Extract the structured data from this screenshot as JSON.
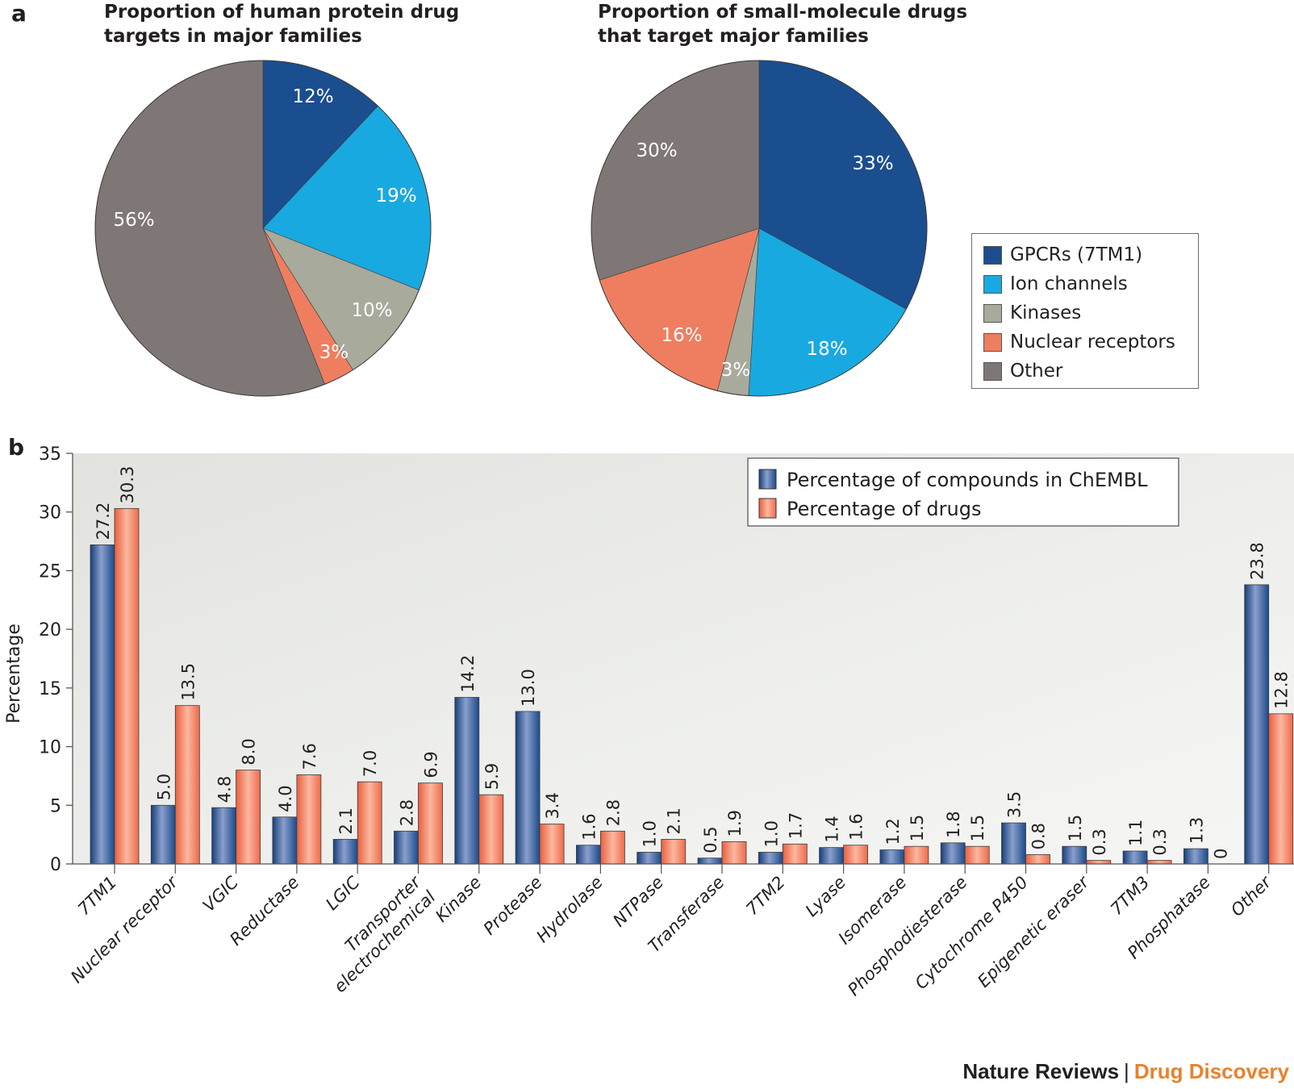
{
  "panels": {
    "a": "a",
    "b": "b"
  },
  "footer": {
    "journal": "Nature Reviews",
    "separator": "|",
    "section": "Drug Discovery"
  },
  "colors": {
    "gpcr": "#1b4e8f",
    "ion": "#19a9e1",
    "kinase": "#a8aa9c",
    "nuclear": "#ef7e60",
    "other": "#7f7776",
    "chembl": "#1e4a8c",
    "drugs": "#ef7354"
  },
  "legend_a": {
    "items": [
      {
        "label": "GPCRs (7TM1)",
        "color_key": "gpcr"
      },
      {
        "label": "Ion channels",
        "color_key": "ion"
      },
      {
        "label": "Kinases",
        "color_key": "kinase"
      },
      {
        "label": "Nuclear receptors",
        "color_key": "nuclear"
      },
      {
        "label": "Other",
        "color_key": "other"
      }
    ]
  },
  "chart_data": [
    {
      "type": "pie",
      "title_lines": [
        "Proportion of human protein drug",
        "targets in major families"
      ],
      "slices": [
        {
          "label": "GPCRs (7TM1)",
          "value": 12,
          "text": "12%",
          "color_key": "gpcr"
        },
        {
          "label": "Ion channels",
          "value": 19,
          "text": "19%",
          "color_key": "ion"
        },
        {
          "label": "Kinases",
          "value": 10,
          "text": "10%",
          "color_key": "kinase"
        },
        {
          "label": "Nuclear receptors",
          "value": 3,
          "text": "3%",
          "color_key": "nuclear"
        },
        {
          "label": "Other",
          "value": 56,
          "text": "56%",
          "color_key": "other"
        }
      ],
      "legend": "right"
    },
    {
      "type": "pie",
      "title_lines": [
        "Proportion of small-molecule drugs",
        "that target major families"
      ],
      "slices": [
        {
          "label": "GPCRs (7TM1)",
          "value": 33,
          "text": "33%",
          "color_key": "gpcr"
        },
        {
          "label": "Ion channels",
          "value": 18,
          "text": "18%",
          "color_key": "ion"
        },
        {
          "label": "Kinases",
          "value": 3,
          "text": "3%",
          "color_key": "kinase"
        },
        {
          "label": "Nuclear receptors",
          "value": 16,
          "text": "16%",
          "color_key": "nuclear"
        },
        {
          "label": "Other",
          "value": 30,
          "text": "30%",
          "color_key": "other"
        }
      ],
      "legend": "right"
    },
    {
      "type": "bar",
      "title": "",
      "xlabel": "",
      "ylabel": "Percentage",
      "ylim": [
        0,
        35
      ],
      "yticks": [
        0,
        5,
        10,
        15,
        20,
        25,
        30,
        35
      ],
      "grid": false,
      "legend": "top-right",
      "categories": [
        "7TM1",
        "Nuclear receptor",
        "VGIC",
        "Reductase",
        "LGIC",
        "Transporter\nelectrochemical",
        "Kinase",
        "Protease",
        "Hydrolase",
        "NTPase",
        "Transferase",
        "7TM2",
        "Lyase",
        "Isomerase",
        "Phosphodiesterase",
        "Cytochrome P450",
        "Epigenetic eraser",
        "7TM3",
        "Phosphatase",
        "Other"
      ],
      "series": [
        {
          "name": "Percentage of compounds in ChEMBL",
          "color_key": "chembl",
          "values": [
            27.2,
            5.0,
            4.8,
            4.0,
            2.1,
            2.8,
            14.2,
            13.0,
            1.6,
            1.0,
            0.5,
            1.0,
            1.4,
            1.2,
            1.8,
            3.5,
            1.5,
            1.1,
            1.3,
            23.8
          ],
          "labels": [
            "27.2",
            "5.0",
            "4.8",
            "4.0",
            "2.1",
            "2.8",
            "14.2",
            "13.0",
            "1.6",
            "1.0",
            "0.5",
            "1.0",
            "1.4",
            "1.2",
            "1.8",
            "3.5",
            "1.5",
            "1.1",
            "1.3",
            "23.8"
          ]
        },
        {
          "name": "Percentage of drugs",
          "color_key": "drugs",
          "values": [
            30.3,
            13.5,
            8.0,
            7.6,
            7.0,
            6.9,
            5.9,
            3.4,
            2.8,
            2.1,
            1.9,
            1.7,
            1.6,
            1.5,
            1.5,
            0.8,
            0.3,
            0.3,
            0,
            12.8
          ],
          "labels": [
            "30.3",
            "13.5",
            "8.0",
            "7.6",
            "7.0",
            "6.9",
            "5.9",
            "3.4",
            "2.8",
            "2.1",
            "1.9",
            "1.7",
            "1.6",
            "1.5",
            "1.5",
            "0.8",
            "0.3",
            "0.3",
            "0",
            "12.8"
          ]
        }
      ]
    }
  ]
}
